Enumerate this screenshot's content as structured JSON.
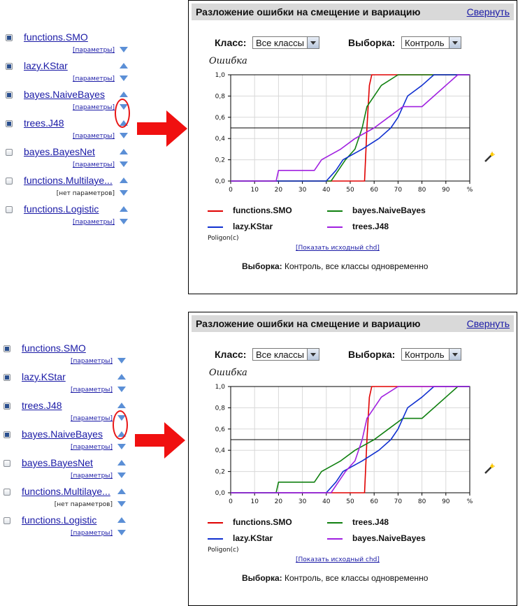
{
  "panels": [
    {
      "title": "Разложение ошибки на смещение и вариацию",
      "collapse": "Свернуть",
      "class_label": "Класс:",
      "class_value": "Все классы",
      "sample_label": "Выборка:",
      "sample_value": "Контроль",
      "subtitle": "Poligon(c)",
      "show_source": "[Показать исходный chd]",
      "footer_label": "Выборка:",
      "footer_text": "Контроль, все классы одновременно",
      "list": [
        {
          "name": "functions.SMO",
          "params": "[параметры]",
          "checked": true,
          "plain": false
        },
        {
          "name": "lazy.KStar",
          "params": "[параметры]",
          "checked": true,
          "plain": false
        },
        {
          "name": "bayes.NaiveBayes",
          "params": "[параметры]",
          "checked": true,
          "plain": false
        },
        {
          "name": "trees.J48",
          "params": "[параметры]",
          "checked": true,
          "plain": false
        },
        {
          "name": "bayes.BayesNet",
          "params": "[параметры]",
          "checked": false,
          "plain": false
        },
        {
          "name": "functions.Multilaye...",
          "params": "[нет параметров]",
          "checked": false,
          "plain": true
        },
        {
          "name": "functions.Logistic",
          "params": "[параметры]",
          "checked": false,
          "plain": false
        }
      ],
      "chart_data": {
        "type": "line",
        "ylabel": "Ошибка",
        "x_ticks": [
          "0",
          "10",
          "20",
          "30",
          "40",
          "50",
          "60",
          "70",
          "80",
          "90",
          "%"
        ],
        "y_ticks": [
          "0,0",
          "0,2",
          "0,4",
          "0,6",
          "0,8",
          "1,0"
        ],
        "xlim": [
          0,
          100
        ],
        "ylim": [
          0,
          1
        ],
        "reference_line": 0.5,
        "grid": true,
        "series": [
          {
            "name": "functions.SMO",
            "color": "#e00000",
            "points": [
              [
                0,
                0
              ],
              [
                56,
                0
              ],
              [
                57,
                0.5
              ],
              [
                58,
                0.9
              ],
              [
                59,
                1.0
              ],
              [
                100,
                1.0
              ]
            ]
          },
          {
            "name": "bayes.NaiveBayes",
            "color": "#108010",
            "points": [
              [
                0,
                0
              ],
              [
                42,
                0
              ],
              [
                45,
                0.1
              ],
              [
                48,
                0.2
              ],
              [
                52,
                0.3
              ],
              [
                55,
                0.5
              ],
              [
                57,
                0.7
              ],
              [
                60,
                0.8
              ],
              [
                63,
                0.9
              ],
              [
                70,
                1.0
              ],
              [
                100,
                1.0
              ]
            ]
          },
          {
            "name": "lazy.KStar",
            "color": "#1030d0",
            "points": [
              [
                0,
                0
              ],
              [
                40,
                0
              ],
              [
                44,
                0.1
              ],
              [
                47,
                0.2
              ],
              [
                55,
                0.3
              ],
              [
                62,
                0.4
              ],
              [
                67,
                0.5
              ],
              [
                70,
                0.6
              ],
              [
                74,
                0.8
              ],
              [
                80,
                0.9
              ],
              [
                85,
                1.0
              ],
              [
                100,
                1.0
              ]
            ]
          },
          {
            "name": "trees.J48",
            "color": "#a020e0",
            "points": [
              [
                0,
                0
              ],
              [
                19,
                0
              ],
              [
                20,
                0.1
              ],
              [
                35,
                0.1
              ],
              [
                38,
                0.2
              ],
              [
                46,
                0.3
              ],
              [
                52,
                0.4
              ],
              [
                60,
                0.5
              ],
              [
                66,
                0.6
              ],
              [
                72,
                0.7
              ],
              [
                80,
                0.7
              ],
              [
                90,
                0.9
              ],
              [
                95,
                1.0
              ],
              [
                100,
                1.0
              ]
            ]
          }
        ],
        "legend": [
          {
            "name": "functions.SMO",
            "color": "#e00000"
          },
          {
            "name": "bayes.NaiveBayes",
            "color": "#108010"
          },
          {
            "name": "lazy.KStar",
            "color": "#1030d0"
          },
          {
            "name": "trees.J48",
            "color": "#a020e0"
          }
        ]
      }
    },
    {
      "title": "Разложение ошибки на смещение и вариацию",
      "collapse": "Свернуть",
      "class_label": "Класс:",
      "class_value": "Все классы",
      "sample_label": "Выборка:",
      "sample_value": "Контроль",
      "subtitle": "Poligon(c)",
      "show_source": "[Показать исходный chd]",
      "footer_label": "Выборка:",
      "footer_text": "Контроль, все классы одновременно",
      "list": [
        {
          "name": "functions.SMO",
          "params": "[параметры]",
          "checked": true,
          "plain": false
        },
        {
          "name": "lazy.KStar",
          "params": "[параметры]",
          "checked": true,
          "plain": false
        },
        {
          "name": "trees.J48",
          "params": "[параметры]",
          "checked": true,
          "plain": false
        },
        {
          "name": "bayes.NaiveBayes",
          "params": "[параметры]",
          "checked": true,
          "plain": false
        },
        {
          "name": "bayes.BayesNet",
          "params": "[параметры]",
          "checked": false,
          "plain": false
        },
        {
          "name": "functions.Multilaye...",
          "params": "[нет параметров]",
          "checked": false,
          "plain": true
        },
        {
          "name": "functions.Logistic",
          "params": "[параметры]",
          "checked": false,
          "plain": false
        }
      ],
      "chart_data": {
        "type": "line",
        "ylabel": "Ошибка",
        "x_ticks": [
          "0",
          "10",
          "20",
          "30",
          "40",
          "50",
          "60",
          "70",
          "80",
          "90",
          "%"
        ],
        "y_ticks": [
          "0,0",
          "0,2",
          "0,4",
          "0,6",
          "0,8",
          "1,0"
        ],
        "xlim": [
          0,
          100
        ],
        "ylim": [
          0,
          1
        ],
        "reference_line": 0.5,
        "grid": true,
        "series": [
          {
            "name": "functions.SMO",
            "color": "#e00000",
            "points": [
              [
                0,
                0
              ],
              [
                56,
                0
              ],
              [
                57,
                0.5
              ],
              [
                58,
                0.9
              ],
              [
                59,
                1.0
              ],
              [
                100,
                1.0
              ]
            ]
          },
          {
            "name": "trees.J48",
            "color": "#108010",
            "points": [
              [
                0,
                0
              ],
              [
                19,
                0
              ],
              [
                20,
                0.1
              ],
              [
                35,
                0.1
              ],
              [
                38,
                0.2
              ],
              [
                46,
                0.3
              ],
              [
                52,
                0.4
              ],
              [
                60,
                0.5
              ],
              [
                66,
                0.6
              ],
              [
                72,
                0.7
              ],
              [
                80,
                0.7
              ],
              [
                90,
                0.9
              ],
              [
                95,
                1.0
              ],
              [
                100,
                1.0
              ]
            ]
          },
          {
            "name": "lazy.KStar",
            "color": "#1030d0",
            "points": [
              [
                0,
                0
              ],
              [
                40,
                0
              ],
              [
                44,
                0.1
              ],
              [
                47,
                0.2
              ],
              [
                55,
                0.3
              ],
              [
                62,
                0.4
              ],
              [
                67,
                0.5
              ],
              [
                70,
                0.6
              ],
              [
                74,
                0.8
              ],
              [
                80,
                0.9
              ],
              [
                85,
                1.0
              ],
              [
                100,
                1.0
              ]
            ]
          },
          {
            "name": "bayes.NaiveBayes",
            "color": "#a020e0",
            "points": [
              [
                0,
                0
              ],
              [
                42,
                0
              ],
              [
                45,
                0.1
              ],
              [
                48,
                0.2
              ],
              [
                52,
                0.3
              ],
              [
                55,
                0.5
              ],
              [
                57,
                0.7
              ],
              [
                60,
                0.8
              ],
              [
                63,
                0.9
              ],
              [
                70,
                1.0
              ],
              [
                100,
                1.0
              ]
            ]
          }
        ],
        "legend": [
          {
            "name": "functions.SMO",
            "color": "#e00000"
          },
          {
            "name": "trees.J48",
            "color": "#108010"
          },
          {
            "name": "lazy.KStar",
            "color": "#1030d0"
          },
          {
            "name": "bayes.NaiveBayes",
            "color": "#a020e0"
          }
        ]
      }
    }
  ]
}
